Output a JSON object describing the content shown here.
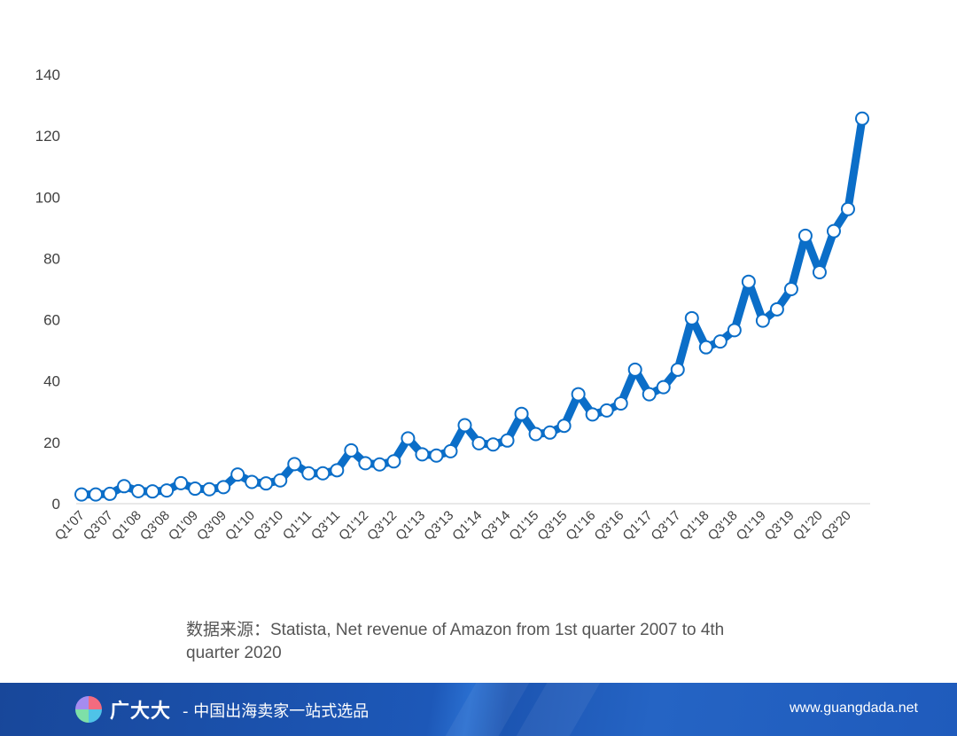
{
  "chart_data": {
    "type": "line",
    "title": "",
    "xlabel": "",
    "ylabel": "",
    "ylim": [
      0,
      140
    ],
    "yticks": [
      0,
      20,
      40,
      60,
      80,
      100,
      120,
      140
    ],
    "grid": false,
    "line_color": "#0b6ec8",
    "tick_labels": [
      "Q1'07",
      "Q3'07",
      "Q1'08",
      "Q3'08",
      "Q1'09",
      "Q3'09",
      "Q1'10",
      "Q3'10",
      "Q1'11",
      "Q3'11",
      "Q1'12",
      "Q3'12",
      "Q1'13",
      "Q3'13",
      "Q1'14",
      "Q3'14",
      "Q1'15",
      "Q3'15",
      "Q1'16",
      "Q3'16",
      "Q1'17",
      "Q3'17",
      "Q1'18",
      "Q3'18",
      "Q1'19",
      "Q3'19",
      "Q1'20",
      "Q3'20"
    ],
    "series": [
      {
        "name": "Net revenue of Amazon",
        "values": [
          3.0,
          3.0,
          3.2,
          5.7,
          4.1,
          4.0,
          4.3,
          6.7,
          4.9,
          4.7,
          5.4,
          9.5,
          7.1,
          6.6,
          7.6,
          12.9,
          9.9,
          9.9,
          10.9,
          17.4,
          13.2,
          12.8,
          13.8,
          21.3,
          16.1,
          15.7,
          17.1,
          25.6,
          19.7,
          19.3,
          20.6,
          29.3,
          22.7,
          23.2,
          25.4,
          35.7,
          29.1,
          30.4,
          32.7,
          43.7,
          35.7,
          38.0,
          43.7,
          60.5,
          51.0,
          52.9,
          56.6,
          72.4,
          59.7,
          63.4,
          70.0,
          87.4,
          75.5,
          88.9,
          96.1,
          125.6
        ]
      }
    ]
  },
  "source_text": "数据来源：Statista, Net revenue of Amazon from 1st quarter 2007 to 4th quarter 2020",
  "footer": {
    "brand": "广大大",
    "slogan": "- 中国出海卖家一站式选品",
    "site": "www.guangdada.net"
  }
}
